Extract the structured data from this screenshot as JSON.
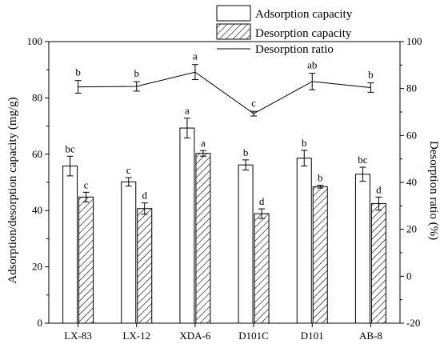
{
  "chart_data": {
    "type": "bar",
    "categories": [
      "LX-83",
      "LX-12",
      "XDA-6",
      "D101C",
      "D101",
      "AB-8"
    ],
    "ylabel": "Adsorption/desorption capacity (mg/g)",
    "y2label": "Desorption ratio (%)",
    "ylim": [
      0,
      100
    ],
    "y2lim": [
      -20,
      100
    ],
    "yticks": [
      "0",
      "20",
      "40",
      "60",
      "80",
      "100"
    ],
    "y2ticks": [
      "-20",
      "0",
      "20",
      "40",
      "60",
      "80",
      "100"
    ],
    "legend_position": "top-right",
    "series": [
      {
        "name": "Adsorption capacity",
        "kind": "bar",
        "fill": "plain",
        "values": [
          55.8,
          50.2,
          69.3,
          56.2,
          58.6,
          52.9
        ],
        "errors": [
          3.5,
          1.5,
          3.5,
          1.8,
          2.8,
          2.5
        ],
        "letters": [
          "bc",
          "c",
          "a",
          "b",
          "b",
          "bc"
        ]
      },
      {
        "name": "Desorption capacity",
        "kind": "bar",
        "fill": "hatched",
        "values": [
          44.8,
          40.7,
          60.3,
          38.9,
          48.5,
          42.5
        ],
        "errors": [
          1.7,
          2.0,
          1.0,
          1.7,
          0.5,
          2.3
        ],
        "letters": [
          "c",
          "d",
          "a",
          "d",
          "b",
          "d"
        ]
      },
      {
        "name": "Desorption ratio",
        "kind": "line",
        "axis": "right",
        "values": [
          80.7,
          80.9,
          87.0,
          69.3,
          83.0,
          80.4
        ],
        "errors": [
          2.7,
          2.0,
          3.2,
          1.0,
          3.5,
          2.0
        ],
        "letters": [
          "b",
          "b",
          "a",
          "c",
          "ab",
          "b"
        ]
      }
    ],
    "colors": {
      "stroke": "#000000",
      "fill": "#ffffff"
    }
  }
}
